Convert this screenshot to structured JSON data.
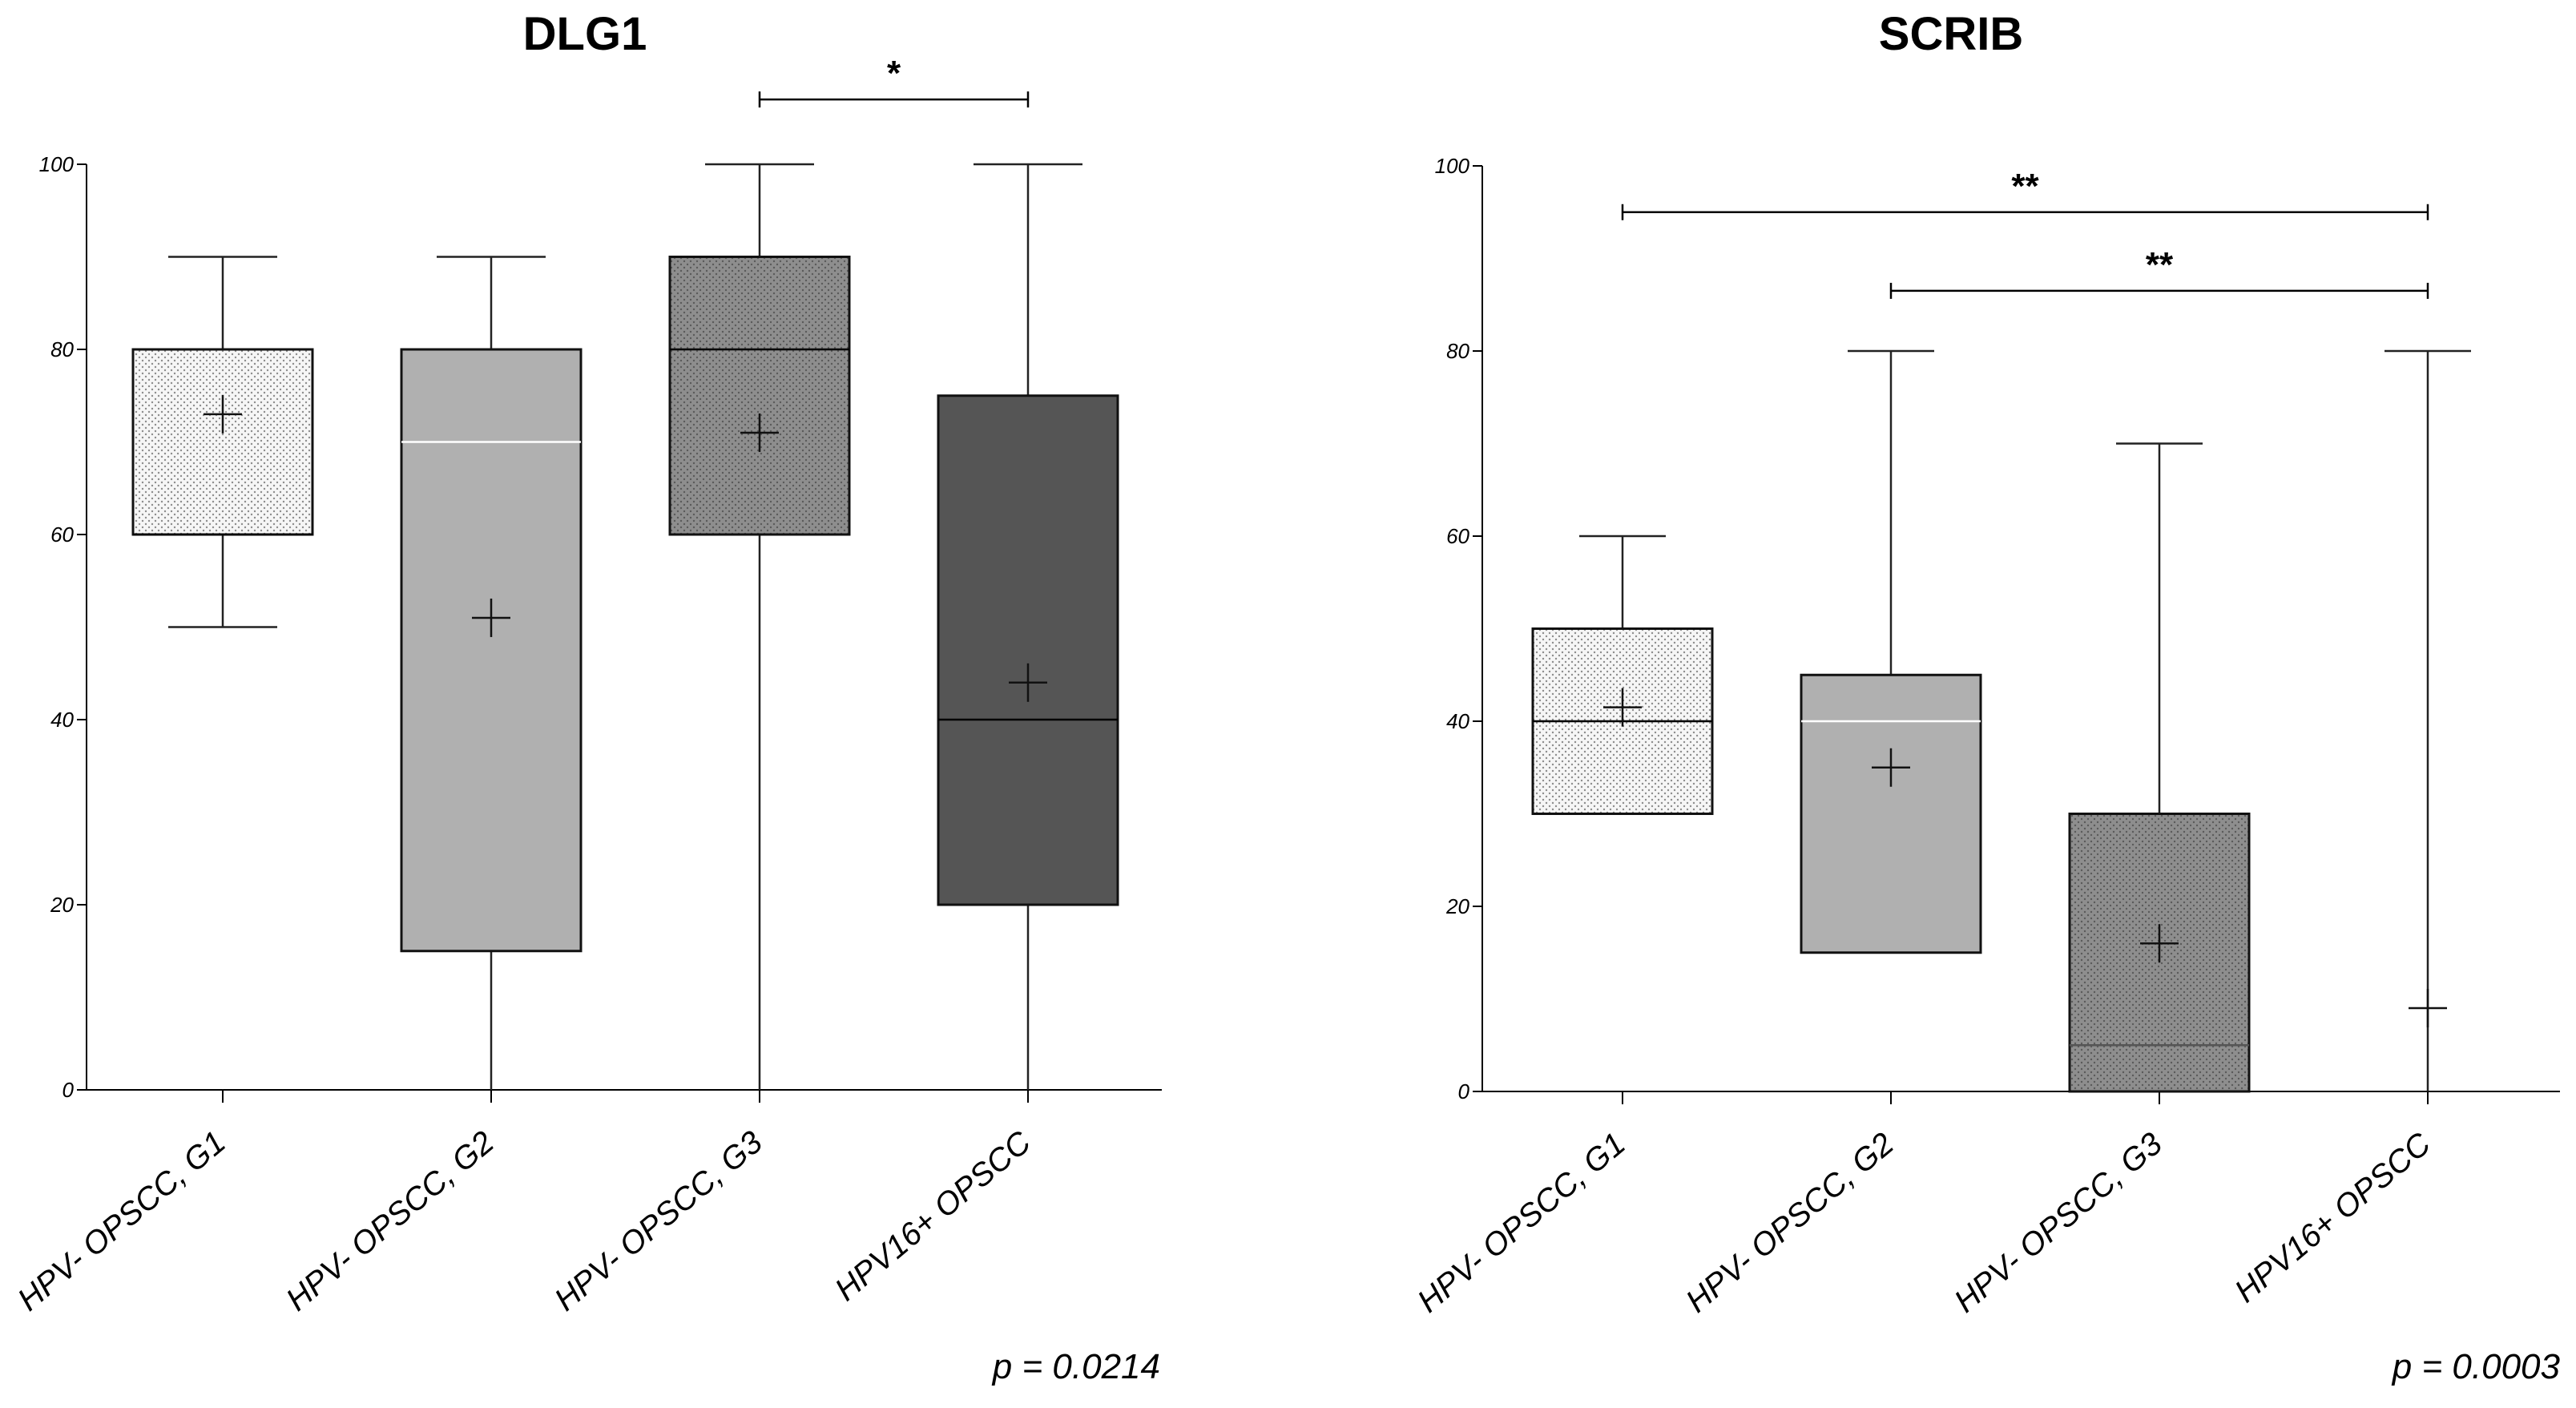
{
  "chart_data": [
    {
      "type": "box",
      "title": "DLG1",
      "ylim": [
        0,
        100
      ],
      "y_ticks": [
        "0",
        "20",
        "40",
        "60",
        "80",
        "100"
      ],
      "categories": [
        "HPV- OPSCC, G1",
        "HPV- OPSCC, G2",
        "HPV- OPSCC, G3",
        "HPV16+ OPSCC"
      ],
      "boxes": [
        {
          "min": 50,
          "q1": 60,
          "median": 60,
          "q3": 80,
          "max": 90,
          "mean": 73,
          "fill": "#f4f4f4",
          "pattern": "dots-light",
          "median_color": "#000000"
        },
        {
          "min": 0,
          "q1": 15,
          "median": 70,
          "q3": 80,
          "max": 90,
          "mean": 51,
          "fill": "#b0b0b0",
          "pattern": "none",
          "median_color": "#ffffff"
        },
        {
          "min": 0,
          "q1": 60,
          "median": 80,
          "q3": 90,
          "max": 100,
          "mean": 71,
          "fill": "#8a8a8a",
          "pattern": "dots-dark",
          "median_color": "#000000"
        },
        {
          "min": 0,
          "q1": 20,
          "median": 40,
          "q3": 75,
          "max": 100,
          "mean": 44,
          "fill": "#555555",
          "pattern": "none",
          "median_color": "#000000"
        }
      ],
      "significance": [
        {
          "from": 2,
          "to": 3,
          "level": 107,
          "label": "*"
        }
      ],
      "p_value": "p = 0.0214"
    },
    {
      "type": "box",
      "title": "SCRIB",
      "ylim": [
        0,
        100
      ],
      "y_ticks": [
        "0",
        "20",
        "40",
        "60",
        "80",
        "100"
      ],
      "categories": [
        "HPV- OPSCC, G1",
        "HPV- OPSCC, G2",
        "HPV- OPSCC, G3",
        "HPV16+ OPSCC"
      ],
      "boxes": [
        {
          "min": 30,
          "q1": 30,
          "median": 40,
          "q3": 50,
          "max": 60,
          "mean": 41.5,
          "fill": "#f4f4f4",
          "pattern": "dots-light",
          "median_color": "#000000"
        },
        {
          "min": 15,
          "q1": 15,
          "median": 40,
          "q3": 45,
          "max": 80,
          "mean": 35,
          "fill": "#b0b0b0",
          "pattern": "none",
          "median_color": "#ffffff"
        },
        {
          "min": 0,
          "q1": 0,
          "median": 5,
          "q3": 30,
          "max": 70,
          "mean": 16,
          "fill": "#8a8a8a",
          "pattern": "dots-dark",
          "median_color": "#555555"
        },
        {
          "min": 0,
          "q1": 0,
          "median": 0,
          "q3": 0,
          "max": 80,
          "mean": 9,
          "fill": "#555555",
          "pattern": "none",
          "median_color": "#000000"
        }
      ],
      "significance": [
        {
          "from": 0,
          "to": 3,
          "level": 95,
          "label": "**"
        },
        {
          "from": 1,
          "to": 3,
          "level": 86.5,
          "label": "**"
        }
      ],
      "p_value": "p = 0.0003"
    }
  ]
}
